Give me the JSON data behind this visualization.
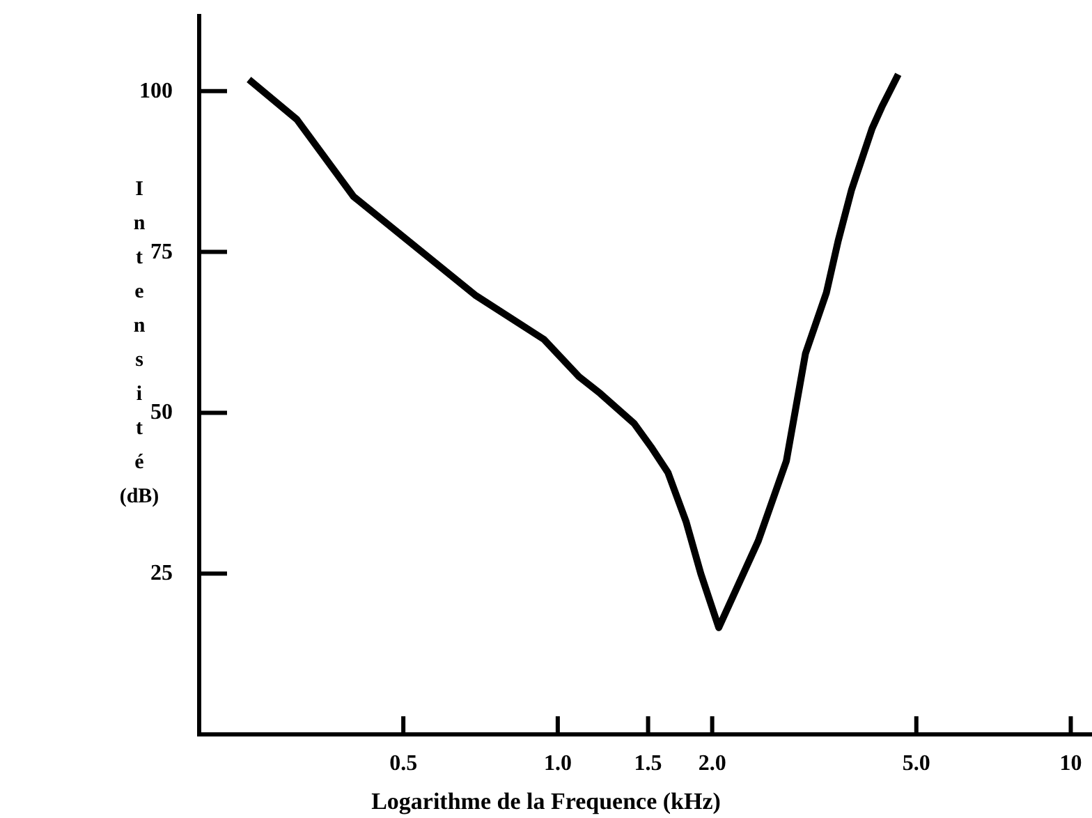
{
  "chart_data": {
    "type": "line",
    "xlabel": "Logarithme de la Frequence (kHz)",
    "ylabel": "Intensité (dB)",
    "xlim": [
      0.2,
      11
    ],
    "ylim": [
      0,
      112
    ],
    "log": "x",
    "xticks": [
      0.5,
      {
        "value": 1,
        "label": "1.0"
      },
      1.5,
      {
        "value": 2,
        "label": "2.0"
      },
      {
        "value": 5,
        "label": "5.0"
      },
      10
    ],
    "yticks": [
      25,
      50,
      75,
      100
    ],
    "grid": false,
    "marker": "none",
    "line_style": "solid",
    "series": [
      {
        "color": "#000000",
        "x": [
          0.25,
          0.31,
          0.4,
          0.45,
          0.69,
          0.94,
          1.1,
          1.21,
          1.41,
          1.52,
          1.64,
          1.78,
          1.9,
          2.06,
          2.46,
          2.79,
          3.04,
          3.34,
          3.52,
          3.74,
          4.1,
          4.28,
          4.61
        ],
        "values": [
          101.8,
          95.6,
          83.6,
          80.3,
          68.3,
          61.4,
          55.6,
          53,
          48.3,
          44.7,
          40.7,
          33,
          25,
          16.6,
          30.1,
          42.5,
          59.2,
          68.7,
          76.7,
          84.7,
          94.2,
          97.5,
          102.6
        ]
      }
    ]
  }
}
